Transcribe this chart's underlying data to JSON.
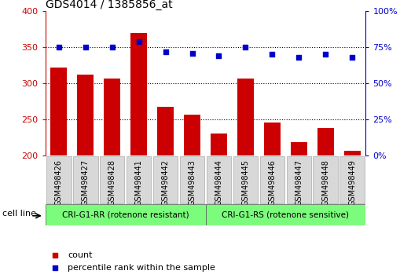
{
  "title": "GDS4014 / 1385856_at",
  "categories": [
    "GSM498426",
    "GSM498427",
    "GSM498428",
    "GSM498441",
    "GSM498442",
    "GSM498443",
    "GSM498444",
    "GSM498445",
    "GSM498446",
    "GSM498447",
    "GSM498448",
    "GSM498449"
  ],
  "counts": [
    322,
    312,
    307,
    370,
    268,
    257,
    231,
    307,
    246,
    219,
    238,
    207
  ],
  "percentiles": [
    75,
    75,
    75,
    79,
    72,
    71,
    69,
    75,
    70,
    68,
    70,
    68
  ],
  "bar_color": "#cc0000",
  "dot_color": "#0000cc",
  "ylim_left": [
    200,
    400
  ],
  "yticks_left": [
    200,
    250,
    300,
    350,
    400
  ],
  "ylim_right": [
    0,
    100
  ],
  "yticks_right": [
    0,
    25,
    50,
    75,
    100
  ],
  "ytick_labels_right": [
    "0%",
    "25%",
    "50%",
    "75%",
    "100%"
  ],
  "group1_label": "CRI-G1-RR (rotenone resistant)",
  "group2_label": "CRI-G1-RS (rotenone sensitive)",
  "group1_count": 6,
  "group2_count": 6,
  "cell_line_label": "cell line",
  "legend1_label": "count",
  "legend2_label": "percentile rank within the sample",
  "group_color": "#7cfc7c",
  "tick_bg_color": "#d8d8d8",
  "title_fontsize": 10,
  "tick_fontsize": 7,
  "axis_fontsize": 8
}
